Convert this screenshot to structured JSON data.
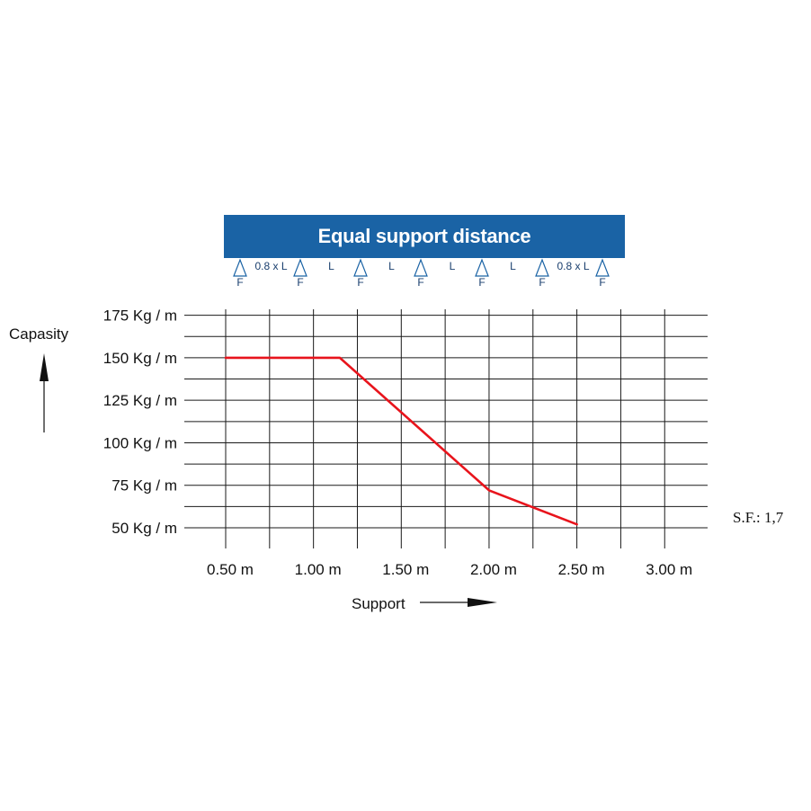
{
  "banner": {
    "title": "Equal support distance"
  },
  "supports": {
    "fixed_label": "F",
    "span_labels": [
      "0.8 x L",
      "L",
      "L",
      "L",
      "L",
      "0.8 x L"
    ]
  },
  "chart_data": {
    "type": "line",
    "xlabel": "Support",
    "ylabel": "Capasity",
    "x_ticks": [
      "0.50 m",
      "1.00 m",
      "1.50 m",
      "2.00 m",
      "2.50 m",
      "3.00 m"
    ],
    "y_ticks": [
      "175 Kg / m",
      "150 Kg / m",
      "125 Kg / m",
      "100 Kg / m",
      "75 Kg / m",
      "50 Kg / m"
    ],
    "xlim": [
      0.5,
      3.0
    ],
    "ylim": [
      50,
      175
    ],
    "grid": true,
    "annotation": "S.F.: 1,7",
    "series": [
      {
        "color": "#e8141c",
        "x": [
          0.5,
          1.15,
          2.0,
          2.5
        ],
        "y": [
          150,
          150,
          72,
          52
        ]
      }
    ]
  }
}
